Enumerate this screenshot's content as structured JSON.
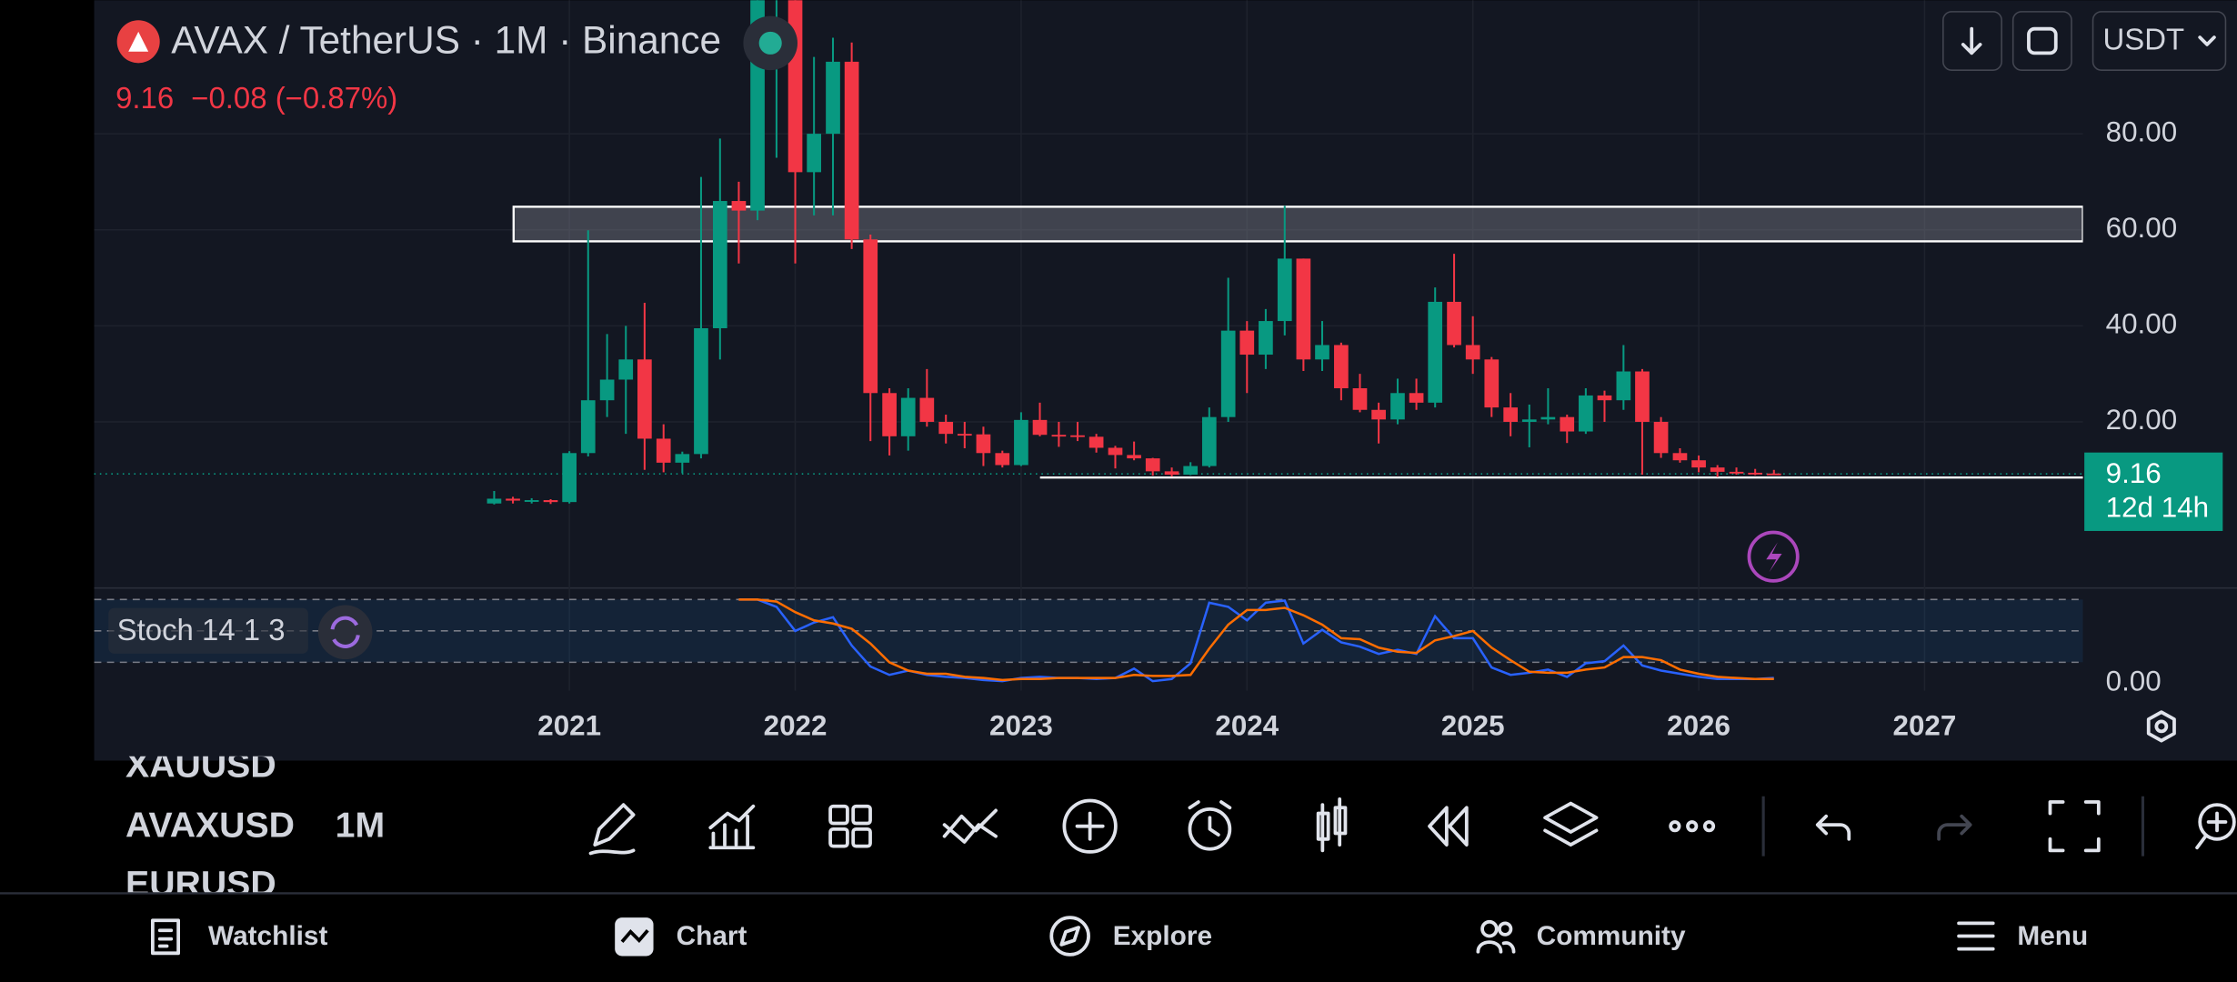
{
  "header": {
    "title": "AVAX / TetherUS · 1M · Binance",
    "price_change": "−0.08 (−0.87%)"
  },
  "currency": "USDT",
  "chart_data": [
    {
      "type": "candlestick",
      "x": [
        2020.667,
        2020.75,
        2020.833,
        2020.917,
        2021.0,
        2021.083,
        2021.167,
        2021.25,
        2021.333,
        2021.417,
        2021.5,
        2021.583,
        2021.667,
        2021.75,
        2021.833,
        2021.917,
        2022.0,
        2022.083,
        2022.167,
        2022.25,
        2022.333,
        2022.417,
        2022.5,
        2022.583,
        2022.667,
        2022.75,
        2022.833,
        2022.917,
        2023.0,
        2023.083,
        2023.167,
        2023.25,
        2023.333,
        2023.417,
        2023.5,
        2023.583,
        2023.667,
        2023.75,
        2023.833,
        2023.917,
        2024.0,
        2024.083,
        2024.167,
        2024.25,
        2024.333,
        2024.417,
        2024.5,
        2024.583,
        2024.667,
        2024.75,
        2024.833,
        2024.917,
        2025.0,
        2025.083,
        2025.167,
        2025.25,
        2025.333,
        2025.417,
        2025.5,
        2025.583,
        2025.667,
        2025.75,
        2025.833,
        2025.917,
        2026.0,
        2026.083,
        2026.167,
        2026.25,
        2026.333
      ],
      "open": [
        3.0,
        4.0,
        3.6,
        3.7,
        3.3,
        13.5,
        24.5,
        28.8,
        33,
        16.5,
        11.5,
        13.3,
        39.5,
        66,
        64,
        108,
        110,
        72,
        80,
        95,
        58,
        26,
        17,
        25,
        20,
        17.5,
        17.4,
        13.5,
        11,
        20.4,
        17.3,
        17.2,
        16.9,
        14.6,
        13.1,
        12.4,
        9.7,
        9.0,
        10.8,
        21,
        39,
        34,
        41,
        54,
        33,
        36,
        27,
        22.5,
        20.5,
        26,
        24,
        45,
        36,
        33,
        23,
        20,
        20.5,
        21,
        18,
        25.5,
        24.5,
        30.5,
        20,
        13.5,
        12,
        10.5,
        9.6,
        9.4,
        9.24
      ],
      "high": [
        5.6,
        4.4,
        4.1,
        3.9,
        13.9,
        59.9,
        38.3,
        40,
        44.8,
        19.5,
        13.8,
        71,
        79,
        70,
        146,
        126,
        112,
        96,
        100,
        99,
        59,
        27,
        27,
        31,
        21.5,
        20,
        19,
        14,
        22,
        24,
        20,
        20,
        17.5,
        15,
        15.9,
        12.5,
        10.5,
        11.6,
        23,
        50,
        41,
        43.5,
        65,
        54,
        41,
        36.5,
        30,
        24,
        29,
        29,
        48,
        55,
        42,
        33.5,
        26,
        23.6,
        27,
        21.5,
        27,
        26.5,
        36,
        31,
        21,
        14.5,
        13,
        11,
        10.5,
        10.2,
        10
      ],
      "low": [
        2.8,
        3.0,
        3.0,
        2.9,
        3.0,
        12.8,
        21,
        17.5,
        10,
        9.5,
        9.3,
        12.4,
        33,
        53,
        62,
        75,
        53,
        63,
        63,
        56,
        16,
        13,
        14,
        19,
        15.5,
        14.5,
        10.8,
        10.5,
        10.8,
        17,
        14.8,
        16,
        13.6,
        10.3,
        12,
        8.8,
        8.6,
        8.9,
        10.5,
        20,
        26,
        31,
        38,
        30.6,
        30.6,
        24.5,
        22,
        15.5,
        19.5,
        22.5,
        23,
        35.5,
        30,
        21,
        17,
        14.7,
        19.5,
        15.6,
        17.5,
        20,
        22.5,
        9,
        12.5,
        11.5,
        9.5,
        8.5,
        9,
        8.9,
        9
      ],
      "close": [
        4.0,
        3.6,
        3.7,
        3.3,
        13.5,
        24.5,
        28.8,
        33,
        16.5,
        11.5,
        13.3,
        39.5,
        66,
        64,
        108,
        110,
        72,
        80,
        95,
        58,
        26,
        17,
        25,
        20,
        17.5,
        17.4,
        13.5,
        11,
        20.4,
        17.3,
        17.2,
        16.9,
        14.6,
        13.1,
        12.4,
        9.7,
        9.0,
        10.8,
        21,
        39,
        34,
        41,
        54,
        33,
        36,
        27,
        22.5,
        20.5,
        26,
        24,
        45,
        36,
        33,
        23,
        20,
        20.5,
        21,
        18,
        25.5,
        24.5,
        30.5,
        20,
        13.5,
        12,
        10.5,
        9.6,
        9.4,
        9.24,
        9.16
      ],
      "up_color": "#089981",
      "down_color": "#f23645",
      "xlim": [
        2018.896,
        2027.701
      ],
      "xticks": [
        2021,
        2022,
        2023,
        2024,
        2025,
        2026,
        2027
      ],
      "ylim": [
        -14.6,
        107.8
      ],
      "yticks": [
        {
          "value": 20,
          "label": "20.00"
        },
        {
          "value": 40,
          "label": "40.00"
        },
        {
          "value": 60,
          "label": "60.00"
        },
        {
          "value": 80,
          "label": "80.00"
        }
      ],
      "grid": true,
      "last_price": 9.16,
      "countdown": "12d 14h",
      "zone": [
        57.6,
        64.8
      ],
      "level": 8.4
    },
    {
      "type": "line",
      "title": "Stoch 14 1 3",
      "x": [
        2021.75,
        2021.833,
        2021.917,
        2022.0,
        2022.083,
        2022.167,
        2022.25,
        2022.333,
        2022.417,
        2022.5,
        2022.583,
        2022.667,
        2022.75,
        2022.833,
        2022.917,
        2023.0,
        2023.083,
        2023.167,
        2023.25,
        2023.333,
        2023.417,
        2023.5,
        2023.583,
        2023.667,
        2023.75,
        2023.833,
        2023.917,
        2024.0,
        2024.083,
        2024.167,
        2024.25,
        2024.333,
        2024.417,
        2024.5,
        2024.583,
        2024.667,
        2024.75,
        2024.833,
        2024.917,
        2025.0,
        2025.083,
        2025.167,
        2025.25,
        2025.333,
        2025.417,
        2025.5,
        2025.583,
        2025.667,
        2025.75,
        2025.833,
        2025.917,
        2026.0,
        2026.083,
        2026.167,
        2026.25,
        2026.333
      ],
      "xlim": [
        2018.896,
        2027.701
      ],
      "ylim": [
        -7.2,
        91
      ],
      "yticks": [
        {
          "value": 0,
          "label": "0.00"
        }
      ],
      "bands": [
        20,
        50,
        80
      ],
      "series": [
        {
          "color": "#2962ff",
          "values": [
            80,
            80,
            73,
            50,
            58,
            63,
            36,
            16,
            8,
            12,
            8,
            6,
            5,
            3,
            2,
            5,
            6,
            5,
            5,
            4,
            5,
            14,
            2,
            4,
            19,
            77,
            73,
            60,
            77,
            79,
            38,
            51,
            39,
            35,
            28,
            32,
            28,
            64,
            43,
            43,
            15,
            8,
            10,
            13,
            6,
            19,
            21,
            36,
            17,
            12,
            9,
            6,
            4,
            4,
            4,
            5
          ]
        },
        {
          "color": "#ff6d00",
          "values": [
            80,
            80,
            78,
            68,
            60,
            57,
            52,
            38,
            20,
            12,
            9,
            9,
            6,
            5,
            3,
            4,
            4,
            5,
            5,
            5,
            5,
            8,
            7,
            7,
            8,
            33,
            56,
            70,
            70,
            72,
            65,
            56,
            43,
            42,
            34,
            30,
            29,
            41,
            45,
            50,
            34,
            22,
            11,
            10,
            10,
            13,
            15,
            25,
            25,
            22,
            13,
            9,
            6,
            5,
            4,
            4
          ]
        }
      ]
    }
  ],
  "symbols": [
    "XAUUSD",
    "AVAXUSD",
    "EURUSD"
  ],
  "interval": "1M",
  "nav": [
    "Watchlist",
    "Chart",
    "Explore",
    "Community",
    "Menu"
  ]
}
